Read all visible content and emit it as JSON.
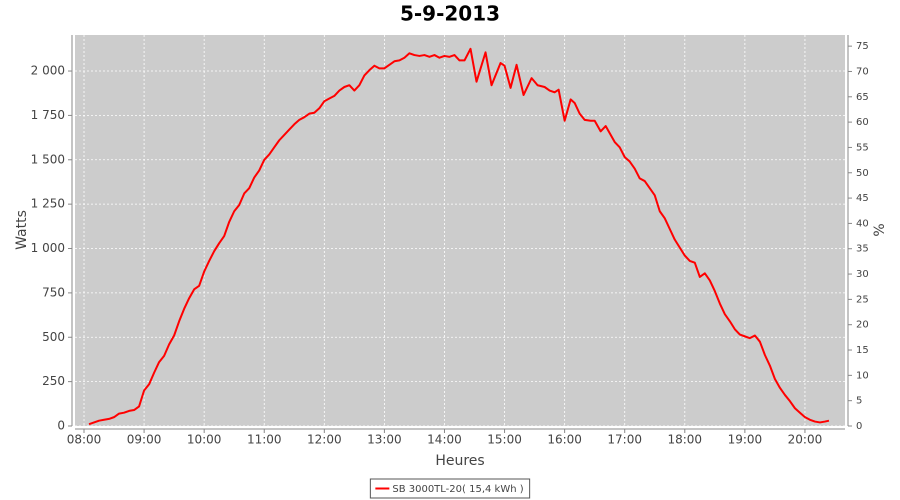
{
  "chart_data": {
    "type": "line",
    "title": "5-9-2013",
    "x_label": "Heures",
    "y_label": "Watts",
    "y2_label": "%",
    "x": [
      "08:05",
      "08:10",
      "08:15",
      "08:20",
      "08:25",
      "08:30",
      "08:35",
      "08:40",
      "08:45",
      "08:50",
      "08:55",
      "09:00",
      "09:05",
      "09:10",
      "09:15",
      "09:20",
      "09:25",
      "09:30",
      "09:35",
      "09:40",
      "09:45",
      "09:50",
      "09:55",
      "10:00",
      "10:05",
      "10:10",
      "10:15",
      "10:20",
      "10:25",
      "10:30",
      "10:35",
      "10:40",
      "10:45",
      "10:50",
      "10:55",
      "11:00",
      "11:05",
      "11:10",
      "11:15",
      "11:20",
      "11:25",
      "11:30",
      "11:35",
      "11:40",
      "11:45",
      "11:50",
      "11:55",
      "12:00",
      "12:05",
      "12:10",
      "12:15",
      "12:20",
      "12:25",
      "12:30",
      "12:35",
      "12:40",
      "12:45",
      "12:50",
      "12:55",
      "13:00",
      "13:05",
      "13:10",
      "13:15",
      "13:20",
      "13:25",
      "13:30",
      "13:35",
      "13:40",
      "13:45",
      "13:50",
      "13:55",
      "14:00",
      "14:05",
      "14:10",
      "14:15",
      "14:20",
      "14:26",
      "14:32",
      "14:41",
      "14:47",
      "14:56",
      "15:00",
      "15:06",
      "15:12",
      "15:19",
      "15:27",
      "15:33",
      "15:40",
      "15:45",
      "15:50",
      "15:54",
      "16:00",
      "16:06",
      "16:10",
      "16:15",
      "16:20",
      "16:26",
      "16:30",
      "16:36",
      "16:41",
      "16:45",
      "16:50",
      "16:55",
      "17:00",
      "17:05",
      "17:10",
      "17:15",
      "17:20",
      "17:25",
      "17:30",
      "17:35",
      "17:40",
      "17:45",
      "17:50",
      "17:55",
      "18:00",
      "18:05",
      "18:10",
      "18:15",
      "18:20",
      "18:25",
      "18:30",
      "18:35",
      "18:40",
      "18:45",
      "18:50",
      "18:55",
      "19:00",
      "19:05",
      "19:10",
      "19:15",
      "19:20",
      "19:25",
      "19:30",
      "19:35",
      "19:40",
      "19:45",
      "19:50",
      "19:55",
      "20:00",
      "20:05",
      "20:10",
      "20:15",
      "20:20",
      "20:24"
    ],
    "series": [
      {
        "name": "SB 3000TL-20( 15,4 kWh )",
        "color": "#ff0000",
        "values": [
          10,
          20,
          30,
          35,
          40,
          50,
          70,
          75,
          85,
          90,
          110,
          200,
          235,
          300,
          360,
          395,
          460,
          510,
          590,
          660,
          720,
          770,
          790,
          870,
          930,
          985,
          1030,
          1070,
          1150,
          1210,
          1245,
          1310,
          1340,
          1400,
          1440,
          1500,
          1530,
          1570,
          1610,
          1640,
          1670,
          1700,
          1725,
          1740,
          1760,
          1765,
          1790,
          1830,
          1845,
          1860,
          1890,
          1910,
          1920,
          1890,
          1920,
          1975,
          2005,
          2030,
          2015,
          2015,
          2035,
          2055,
          2060,
          2075,
          2100,
          2090,
          2085,
          2090,
          2080,
          2090,
          2075,
          2085,
          2080,
          2090,
          2060,
          2060,
          2125,
          1940,
          2105,
          1920,
          2045,
          2030,
          1905,
          2035,
          1865,
          1960,
          1920,
          1910,
          1890,
          1880,
          1895,
          1720,
          1840,
          1820,
          1760,
          1725,
          1720,
          1720,
          1660,
          1690,
          1650,
          1600,
          1570,
          1515,
          1490,
          1450,
          1395,
          1380,
          1340,
          1300,
          1210,
          1170,
          1110,
          1050,
          1005,
          960,
          930,
          920,
          840,
          860,
          820,
          760,
          690,
          630,
          590,
          545,
          515,
          505,
          495,
          510,
          475,
          400,
          340,
          265,
          215,
          175,
          140,
          100,
          75,
          50,
          35,
          25,
          20,
          25,
          30
        ]
      }
    ],
    "xlim": [
      "07:51",
      "20:40"
    ],
    "xticks": [
      "08:00",
      "09:00",
      "10:00",
      "11:00",
      "12:00",
      "13:00",
      "14:00",
      "15:00",
      "16:00",
      "17:00",
      "18:00",
      "19:00",
      "20:00"
    ],
    "ylim": [
      0,
      2203
    ],
    "yticks": [
      0,
      250,
      500,
      750,
      {
        "value": 1000,
        "label": "1 000"
      },
      {
        "value": 1250,
        "label": "1 250"
      },
      {
        "value": 1500,
        "label": "1 500"
      },
      {
        "value": 1750,
        "label": "1 750"
      },
      {
        "value": 2000,
        "label": "2 000"
      }
    ],
    "y2lim": [
      0,
      77.2
    ],
    "y2ticks": [
      0,
      5,
      10,
      15,
      20,
      25,
      30,
      35,
      40,
      45,
      50,
      55,
      60,
      65,
      70,
      75
    ],
    "grid": true,
    "legend": "bottom"
  }
}
